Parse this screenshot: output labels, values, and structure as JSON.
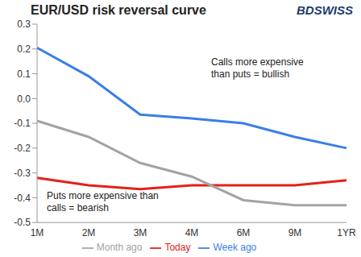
{
  "chart_data": {
    "type": "line",
    "title": "EUR/USD risk reversal curve",
    "logo": "BDSWISS",
    "annotations": [
      "Calls more expensive than puts = bullish",
      "Puts more expensive than calls = bearish"
    ],
    "categories": [
      "1M",
      "2M",
      "3M",
      "4M",
      "6M",
      "9M",
      "1YR"
    ],
    "series": [
      {
        "name": "Today",
        "color": "#e32119",
        "values": [
          -0.32,
          -0.35,
          -0.365,
          -0.35,
          -0.35,
          -0.35,
          -0.33
        ]
      },
      {
        "name": "Week ago",
        "color": "#3a7fe6",
        "values": [
          0.205,
          0.09,
          -0.065,
          -0.08,
          -0.1,
          -0.155,
          -0.2
        ]
      },
      {
        "name": "Month ago",
        "color": "#a3a3a3",
        "values": [
          -0.09,
          -0.155,
          -0.26,
          -0.315,
          -0.41,
          -0.43,
          -0.43
        ]
      }
    ],
    "ylim": [
      -0.5,
      0.3
    ],
    "yticks": [
      0.3,
      0.2,
      0.1,
      {
        "value": 0,
        "label": "0.0"
      },
      -0.1,
      -0.2,
      -0.3,
      -0.4,
      -0.5
    ],
    "grid": false,
    "legend": "bottom",
    "marker": "none",
    "line_style": "solid"
  }
}
